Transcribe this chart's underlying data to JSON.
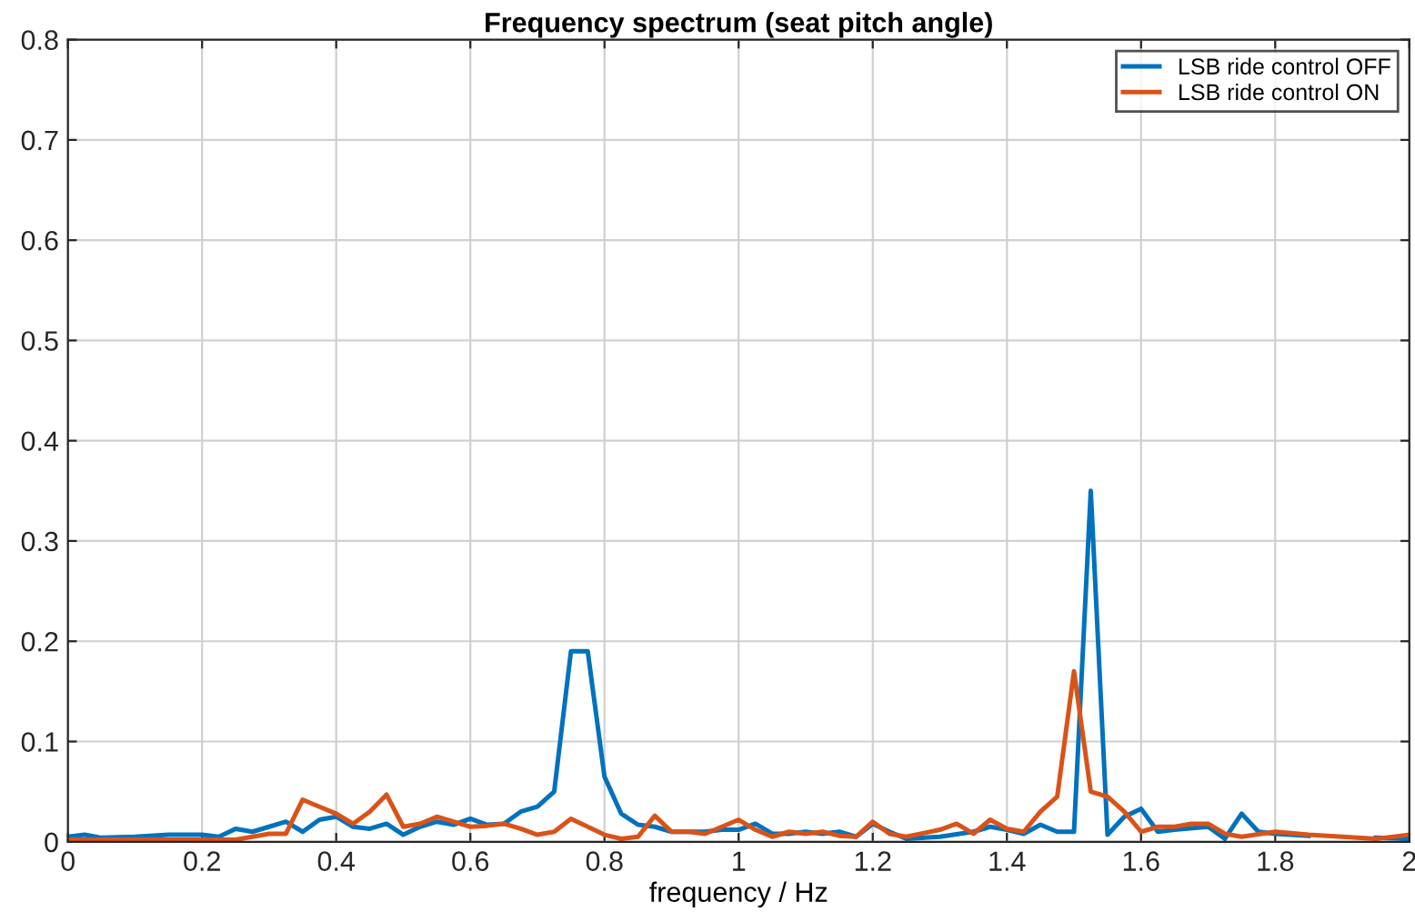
{
  "chart_data": {
    "type": "line",
    "title": "Frequency spectrum (seat pitch angle)",
    "xlabel": "frequency / Hz",
    "xlim": [
      0,
      2
    ],
    "ylim": [
      0,
      0.8
    ],
    "xticks": [
      0,
      0.2,
      0.4,
      0.6,
      0.8,
      1,
      1.2,
      1.4,
      1.6,
      1.8,
      2
    ],
    "yticks": [
      0,
      0.1,
      0.2,
      0.3,
      0.4,
      0.5,
      0.6,
      0.7,
      0.8
    ],
    "grid": true,
    "legend": "top right",
    "marker": "none",
    "line_style": "solid",
    "series": [
      {
        "name": "LSB ride control OFF",
        "color": "#0072bd",
        "x": [
          0,
          0.025,
          0.05,
          0.1,
          0.15,
          0.2,
          0.225,
          0.25,
          0.275,
          0.3,
          0.325,
          0.35,
          0.375,
          0.4,
          0.425,
          0.45,
          0.475,
          0.5,
          0.525,
          0.55,
          0.575,
          0.6,
          0.625,
          0.65,
          0.675,
          0.7,
          0.725,
          0.75,
          0.775,
          0.8,
          0.825,
          0.85,
          0.875,
          0.9,
          0.95,
          0.975,
          1.0,
          1.025,
          1.05,
          1.075,
          1.1,
          1.125,
          1.15,
          1.175,
          1.2,
          1.225,
          1.25,
          1.3,
          1.35,
          1.375,
          1.4,
          1.425,
          1.45,
          1.475,
          1.5,
          1.525,
          1.55,
          1.575,
          1.6,
          1.625,
          1.65,
          1.7,
          1.725,
          1.75,
          1.775,
          1.8,
          1.85,
          1.9,
          1.95,
          2.0
        ],
        "values": [
          0.005,
          0.007,
          0.004,
          0.005,
          0.007,
          0.007,
          0.005,
          0.013,
          0.01,
          0.015,
          0.02,
          0.01,
          0.022,
          0.025,
          0.015,
          0.013,
          0.018,
          0.007,
          0.015,
          0.02,
          0.017,
          0.023,
          0.017,
          0.018,
          0.03,
          0.035,
          0.05,
          0.19,
          0.19,
          0.065,
          0.028,
          0.017,
          0.015,
          0.01,
          0.01,
          0.012,
          0.012,
          0.018,
          0.008,
          0.008,
          0.01,
          0.008,
          0.01,
          0.005,
          0.018,
          0.01,
          0.003,
          0.005,
          0.01,
          0.015,
          0.012,
          0.008,
          0.017,
          0.01,
          0.01,
          0.35,
          0.007,
          0.025,
          0.033,
          0.01,
          0.012,
          0.015,
          0.003,
          0.028,
          0.01,
          0.008,
          0.006,
          null,
          0.004,
          0.003
        ]
      },
      {
        "name": "LSB ride control ON",
        "color": "#d95319",
        "x": [
          0,
          0.1,
          0.2,
          0.25,
          0.3,
          0.325,
          0.35,
          0.375,
          0.4,
          0.425,
          0.45,
          0.475,
          0.5,
          0.525,
          0.55,
          0.575,
          0.6,
          0.625,
          0.65,
          0.675,
          0.7,
          0.725,
          0.75,
          0.775,
          0.8,
          0.825,
          0.85,
          0.875,
          0.9,
          0.925,
          0.95,
          0.975,
          1.0,
          1.025,
          1.05,
          1.075,
          1.1,
          1.125,
          1.15,
          1.175,
          1.2,
          1.225,
          1.25,
          1.3,
          1.325,
          1.35,
          1.375,
          1.4,
          1.425,
          1.45,
          1.475,
          1.5,
          1.525,
          1.55,
          1.575,
          1.6,
          1.625,
          1.65,
          1.675,
          1.7,
          1.725,
          1.75,
          1.8,
          1.85,
          1.9,
          1.95,
          2.0
        ],
        "values": [
          0.002,
          0.002,
          0.002,
          0.002,
          0.008,
          0.008,
          0.042,
          0.035,
          0.028,
          0.018,
          0.03,
          0.047,
          0.015,
          0.018,
          0.025,
          0.02,
          0.015,
          0.016,
          0.018,
          0.013,
          0.007,
          0.01,
          0.023,
          0.015,
          0.007,
          0.003,
          0.005,
          0.026,
          0.01,
          0.01,
          0.008,
          0.015,
          0.022,
          0.012,
          0.005,
          0.01,
          0.008,
          0.01,
          0.006,
          0.005,
          0.02,
          0.008,
          0.005,
          0.012,
          0.018,
          0.008,
          0.022,
          0.013,
          0.01,
          0.03,
          0.045,
          0.17,
          0.05,
          0.045,
          0.03,
          0.01,
          0.015,
          0.015,
          0.018,
          0.018,
          0.008,
          0.005,
          0.01,
          0.007,
          0.005,
          0.003,
          0.007
        ]
      }
    ]
  }
}
